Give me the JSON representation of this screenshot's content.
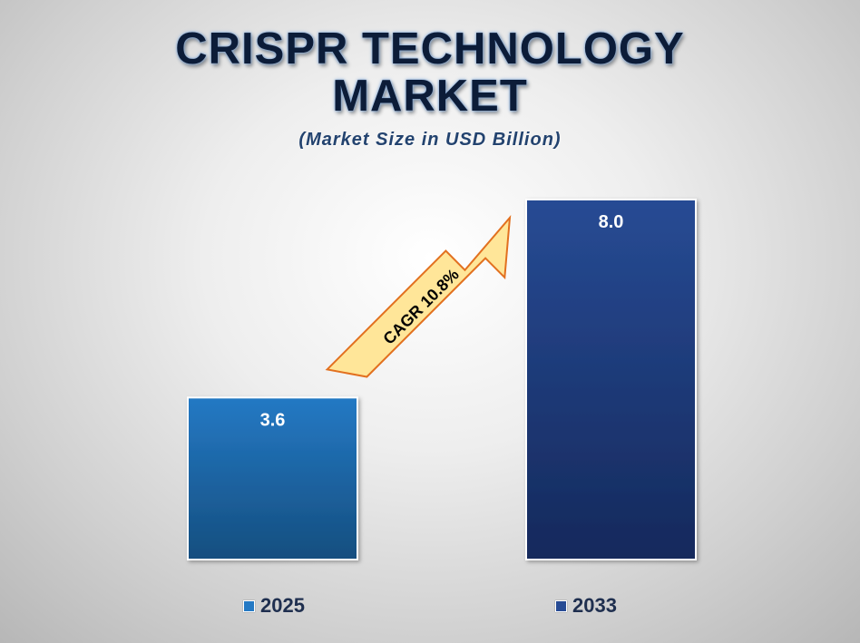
{
  "title_lines": [
    "CRISPR TECHNOLOGY",
    "MARKET"
  ],
  "subtitle": "(Market Size in USD Billion)",
  "cagr_label": "CAGR 10.8%",
  "colors": {
    "bar_2025_top": "#2479c4",
    "bar_2025_bottom": "#154e7f",
    "bar_2033_top": "#274b94",
    "bar_2033_bottom": "#15295c",
    "arrow_fill": "#ffe699",
    "arrow_stroke": "#e2701f"
  },
  "chart_data": {
    "type": "bar",
    "title": "CRISPR TECHNOLOGY MARKET",
    "subtitle": "(Market Size in USD Billion)",
    "categories": [
      "2025",
      "2033"
    ],
    "values": [
      3.6,
      8.0
    ],
    "value_labels": [
      "3.6",
      "8.0"
    ],
    "annotation": "CAGR 10.8%",
    "legend": [
      "2025",
      "2033"
    ],
    "legend_position": "bottom",
    "grid": false,
    "ylim": [
      0,
      8.0
    ]
  }
}
